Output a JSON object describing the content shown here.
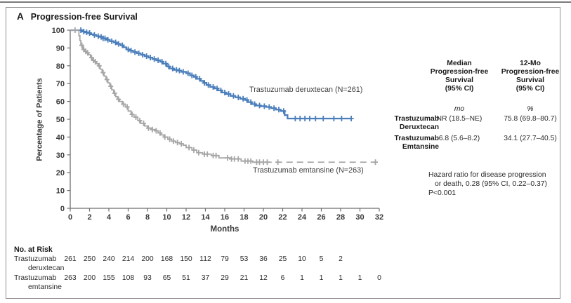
{
  "panel": {
    "label": "A",
    "title": "Progression-free Survival"
  },
  "chart_data": {
    "type": "line",
    "subtype": "kaplan-meier-step",
    "title": "Progression-free Survival",
    "xlabel": "Months",
    "ylabel": "Percentage of Patients",
    "xlim": [
      0,
      32
    ],
    "ylim": [
      0,
      100
    ],
    "xticks": [
      0,
      2,
      4,
      6,
      8,
      10,
      12,
      14,
      16,
      18,
      20,
      22,
      24,
      26,
      28,
      30,
      32
    ],
    "yticks": [
      0,
      10,
      20,
      30,
      40,
      50,
      60,
      70,
      80,
      90,
      100
    ],
    "grid": false,
    "legend_position": "inline-labels",
    "series": [
      {
        "name": "trastuzumab-deruxtecan",
        "label": "Trastuzumab deruxtecan (N=261)",
        "n": 261,
        "color": "#4a7ebb",
        "line_width": 2.3,
        "dash_from": null,
        "points": [
          [
            0,
            100
          ],
          [
            1.0,
            100
          ],
          [
            1.2,
            99.2
          ],
          [
            1.5,
            98.8
          ],
          [
            1.8,
            98.4
          ],
          [
            2.1,
            97.7
          ],
          [
            2.4,
            97.3
          ],
          [
            2.7,
            96.6
          ],
          [
            3.0,
            96.2
          ],
          [
            3.4,
            95.4
          ],
          [
            3.8,
            94.6
          ],
          [
            4.1,
            93.8
          ],
          [
            4.5,
            93.1
          ],
          [
            4.8,
            92.3
          ],
          [
            5.2,
            91.5
          ],
          [
            5.5,
            90.4
          ],
          [
            5.8,
            89.2
          ],
          [
            6.1,
            88.5
          ],
          [
            6.5,
            87.7
          ],
          [
            6.9,
            87.0
          ],
          [
            7.3,
            86.2
          ],
          [
            7.7,
            85.4
          ],
          [
            8.1,
            84.6
          ],
          [
            8.5,
            83.8
          ],
          [
            8.9,
            83.1
          ],
          [
            9.3,
            82.3
          ],
          [
            9.6,
            81.2
          ],
          [
            10.0,
            79.6
          ],
          [
            10.3,
            78.5
          ],
          [
            10.7,
            77.7
          ],
          [
            11.1,
            77.3
          ],
          [
            11.5,
            76.6
          ],
          [
            12.0,
            75.8
          ],
          [
            12.4,
            74.6
          ],
          [
            12.8,
            73.8
          ],
          [
            13.1,
            72.7
          ],
          [
            13.5,
            71.5
          ],
          [
            13.8,
            70.4
          ],
          [
            14.1,
            69.2
          ],
          [
            14.5,
            68.1
          ],
          [
            14.9,
            67.3
          ],
          [
            15.3,
            66.2
          ],
          [
            15.7,
            65.0
          ],
          [
            16.1,
            64.2
          ],
          [
            16.6,
            63.1
          ],
          [
            17.1,
            62.3
          ],
          [
            17.6,
            61.5
          ],
          [
            18.1,
            60.8
          ],
          [
            18.4,
            59.6
          ],
          [
            18.8,
            58.5
          ],
          [
            19.2,
            57.7
          ],
          [
            19.7,
            57.3
          ],
          [
            20.3,
            56.9
          ],
          [
            20.8,
            56.2
          ],
          [
            21.3,
            55.4
          ],
          [
            21.8,
            54.6
          ],
          [
            22.2,
            52.3
          ],
          [
            22.5,
            50.4
          ],
          [
            29.1,
            50.4
          ]
        ],
        "censor_months": [
          1.1,
          1.4,
          1.7,
          2.0,
          2.5,
          2.9,
          3.2,
          3.4,
          3.6,
          3.9,
          4.3,
          4.7,
          5.0,
          5.4,
          6.0,
          6.3,
          6.7,
          7.1,
          7.5,
          7.9,
          8.3,
          8.7,
          9.1,
          9.5,
          9.9,
          10.2,
          10.6,
          11.0,
          11.3,
          11.7,
          12.2,
          12.6,
          13.0,
          13.4,
          13.9,
          14.3,
          14.8,
          15.2,
          15.6,
          16.0,
          16.4,
          16.9,
          17.4,
          17.9,
          18.3,
          18.7,
          19.1,
          19.6,
          20.1,
          20.6,
          21.1,
          21.6,
          22.1,
          23.3,
          23.8,
          24.3,
          24.8,
          25.4,
          26.2,
          27.3,
          28.1,
          29.1
        ]
      },
      {
        "name": "trastuzumab-emtansine",
        "label": "Trastuzumab emtansine (N=263)",
        "n": 263,
        "color": "#a6a6a6",
        "line_width": 1.8,
        "dash_from": 20.2,
        "points": [
          [
            0,
            100
          ],
          [
            0.8,
            100
          ],
          [
            0.9,
            96.9
          ],
          [
            1.0,
            94.2
          ],
          [
            1.1,
            91.5
          ],
          [
            1.3,
            89.2
          ],
          [
            1.5,
            88.1
          ],
          [
            1.7,
            87.3
          ],
          [
            1.9,
            86.2
          ],
          [
            2.1,
            84.6
          ],
          [
            2.3,
            83.1
          ],
          [
            2.5,
            82.3
          ],
          [
            2.7,
            81.2
          ],
          [
            2.9,
            80.0
          ],
          [
            3.1,
            78.1
          ],
          [
            3.3,
            76.2
          ],
          [
            3.5,
            74.2
          ],
          [
            3.7,
            72.3
          ],
          [
            3.9,
            70.4
          ],
          [
            4.1,
            68.5
          ],
          [
            4.3,
            66.5
          ],
          [
            4.5,
            64.6
          ],
          [
            4.7,
            62.7
          ],
          [
            4.9,
            61.2
          ],
          [
            5.1,
            60.0
          ],
          [
            5.4,
            58.5
          ],
          [
            5.7,
            56.9
          ],
          [
            6.0,
            54.6
          ],
          [
            6.3,
            52.7
          ],
          [
            6.6,
            51.2
          ],
          [
            7.0,
            49.2
          ],
          [
            7.3,
            47.7
          ],
          [
            7.7,
            46.2
          ],
          [
            8.0,
            45.0
          ],
          [
            8.4,
            44.2
          ],
          [
            8.8,
            43.5
          ],
          [
            9.1,
            42.3
          ],
          [
            9.4,
            41.2
          ],
          [
            9.7,
            40.0
          ],
          [
            10.1,
            38.8
          ],
          [
            10.5,
            37.7
          ],
          [
            10.9,
            36.9
          ],
          [
            11.3,
            36.2
          ],
          [
            11.7,
            35.4
          ],
          [
            12.0,
            34.1
          ],
          [
            12.6,
            32.7
          ],
          [
            13.1,
            31.2
          ],
          [
            13.7,
            30.4
          ],
          [
            14.6,
            29.6
          ],
          [
            15.4,
            28.3
          ],
          [
            16.6,
            27.7
          ],
          [
            17.7,
            26.5
          ],
          [
            18.9,
            25.9
          ],
          [
            31.6,
            25.9
          ]
        ],
        "censor_months": [
          0.5,
          1.2,
          1.4,
          1.6,
          1.8,
          2.2,
          2.4,
          2.6,
          3.0,
          3.4,
          3.8,
          4.2,
          4.6,
          5.0,
          5.5,
          5.9,
          6.4,
          6.8,
          7.2,
          7.6,
          8.1,
          8.5,
          8.9,
          9.3,
          9.8,
          10.3,
          10.7,
          11.1,
          11.5,
          12.3,
          12.8,
          13.3,
          13.9,
          14.2,
          14.8,
          15.1,
          16.3,
          16.7,
          17.0,
          17.4,
          18.1,
          18.4,
          18.7,
          19.3,
          19.6,
          20.0,
          20.4,
          21.5,
          31.6
        ]
      }
    ]
  },
  "summary_table": {
    "col1_header": "Median\nProgression-free\nSurvival\n(95% CI)",
    "col2_header": "12-Mo\nProgression-free\nSurvival\n(95% CI)",
    "col1_units": "mo",
    "col2_units": "%",
    "rows": [
      {
        "label": "Trastuzumab\nDeruxtecan",
        "median": "NR (18.5–NE)",
        "rate12": "75.8 (69.8–80.7)"
      },
      {
        "label": "Trastuzumab\nEmtansine",
        "median": "6.8 (5.6–8.2)",
        "rate12": "34.1 (27.7–40.5)"
      }
    ]
  },
  "hazard_note": {
    "line1": "Hazard ratio for disease progression",
    "line2": "or death, 0.28 (95% CI, 0.22–0.37)",
    "line3": "P<0.001"
  },
  "at_risk": {
    "heading": "No. at Risk",
    "rows": [
      {
        "label_line1": "Trastuzumab",
        "label_line2": "deruxtecan",
        "months": [
          0,
          2,
          4,
          6,
          8,
          10,
          12,
          14,
          16,
          18,
          20,
          22,
          24,
          26,
          28
        ],
        "values": [
          261,
          250,
          240,
          214,
          200,
          168,
          150,
          112,
          79,
          53,
          36,
          25,
          10,
          5,
          2
        ]
      },
      {
        "label_line1": "Trastuzumab",
        "label_line2": "emtansine",
        "months": [
          0,
          2,
          4,
          6,
          8,
          10,
          12,
          14,
          16,
          18,
          20,
          22,
          24,
          26,
          28,
          30,
          32
        ],
        "values": [
          263,
          200,
          155,
          108,
          93,
          65,
          51,
          37,
          29,
          21,
          12,
          6,
          1,
          1,
          1,
          1,
          0
        ]
      }
    ]
  },
  "colors": {
    "deruxtecan_blue": "#4a7ebb",
    "emtansine_gray": "#a6a6a6",
    "axis": "#6d6e71",
    "tick_text": "#3a3a3c",
    "border": "#8f9092"
  }
}
